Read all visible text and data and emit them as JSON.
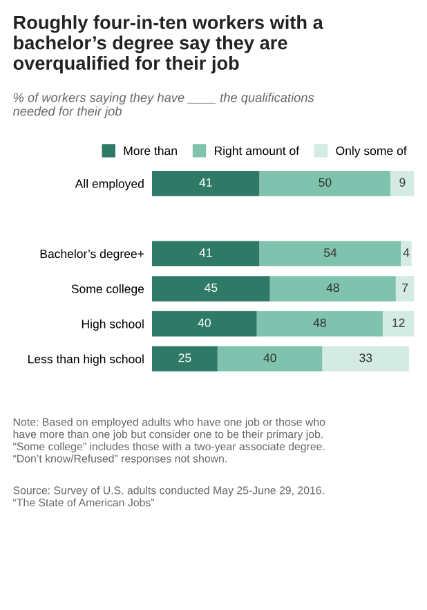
{
  "chart_data": {
    "type": "bar",
    "orientation": "horizontal",
    "stacked": true,
    "title": "Roughly four-in-ten workers with a\nbachelor’s degree say they are\noverqualified for their job",
    "subtitle": "% of workers saying they have ____ the qualifications\nneeded for their job",
    "categories": [
      "All employed",
      null,
      "Bachelor’s degree+",
      "Some college",
      "High school",
      "Less than high school"
    ],
    "series": [
      {
        "name": "More than",
        "color": "#2f7a66",
        "values": [
          41,
          null,
          41,
          45,
          40,
          25
        ]
      },
      {
        "name": "Right amount of",
        "color": "#7fc3ae",
        "values": [
          50,
          null,
          54,
          48,
          48,
          40
        ]
      },
      {
        "name": "Only some of",
        "color": "#d3ebe3",
        "values": [
          9,
          null,
          4,
          7,
          12,
          33
        ]
      }
    ],
    "data_labels": true,
    "legend": "top",
    "grid": false,
    "tick_labels": "y",
    "annotations": [
      "Note: Based on employed adults who have one job or those who\nhave more than one job but consider one to be their primary job.\n“Some college” includes those with a two-year associate degree.\n“Don’t know/Refused” responses not shown.",
      "Source: Survey of U.S. adults conducted May 25-June 29, 2016.\n“The State of American Jobs”"
    ]
  }
}
